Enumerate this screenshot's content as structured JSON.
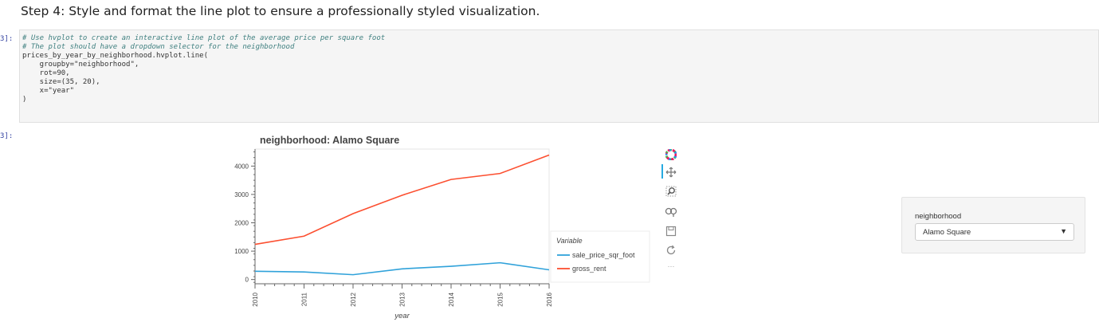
{
  "heading": "Step 4: Style and format the line plot to ensure a professionally styled visualization.",
  "cell": {
    "input_prompt": "3]:",
    "output_prompt": "3]:",
    "code_lines": [
      "# Use hvplot to create an interactive line plot of the average price per square foot",
      "# The plot should have a dropdown selector for the neighborhood",
      "prices_by_year_by_neighborhood.hvplot.line(",
      "    groupby=\"neighborhood\",",
      "    rot=90,",
      "    size=(35, 20),",
      "    x=\"year\"",
      ")"
    ]
  },
  "toolbar": {
    "icons": [
      "bokeh-logo-icon",
      "pan-icon",
      "box-zoom-icon",
      "wheel-zoom-icon",
      "save-icon",
      "reset-icon",
      "more-icon"
    ],
    "more_label": "⋯"
  },
  "widget": {
    "label": "neighborhood",
    "selected": "Alamo Square",
    "caret": "▼"
  },
  "colors": {
    "sale_price_sqr_foot": "#30a2da",
    "gross_rent": "#fc4f30"
  },
  "chart_data": {
    "type": "line",
    "title": "neighborhood: Alamo Square",
    "xlabel": "year",
    "ylabel": "",
    "x": [
      2010,
      2011,
      2012,
      2013,
      2014,
      2015,
      2016
    ],
    "series": [
      {
        "name": "sale_price_sqr_foot",
        "values": [
          291,
          267,
          170,
          376,
          467,
          591,
          342
        ]
      },
      {
        "name": "gross_rent",
        "values": [
          1239,
          1530,
          2324,
          2971,
          3528,
          3739,
          4390
        ]
      }
    ],
    "ylim": [
      -150,
      4600
    ],
    "yticks": [
      0,
      1000,
      2000,
      3000,
      4000
    ],
    "ytick_labels": [
      "0",
      "1000",
      "2000",
      "3000",
      "4000"
    ],
    "xtick_labels": [
      "2010",
      "2011",
      "2012",
      "2013",
      "2014",
      "2015",
      "2016"
    ],
    "legend_title": "Variable",
    "legend_position": "right",
    "grid": false
  }
}
